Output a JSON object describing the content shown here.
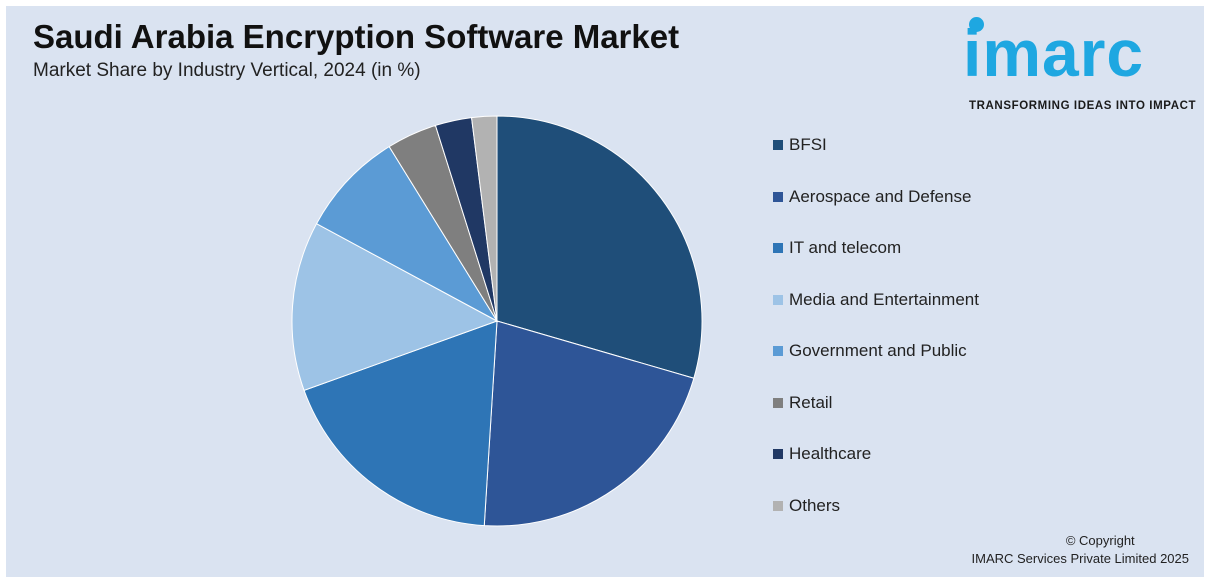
{
  "header": {
    "title": "Saudi Arabia Encryption Software Market",
    "subtitle": "Market Share by Industry Vertical, 2024 (in %)"
  },
  "logo": {
    "wordmark": "imarc",
    "tagline": "TRANSFORMING IDEAS INTO IMPACT",
    "color": "#1ea7e1"
  },
  "chart_data": {
    "type": "pie",
    "categories": [
      "BFSI",
      "Aerospace and Defense",
      "IT and telecom",
      "Media and Entertainment",
      "Government and Public",
      "Retail",
      "Healthcare",
      "Others"
    ],
    "values": [
      29.8,
      21.7,
      18.7,
      13.5,
      8.4,
      4.0,
      2.9,
      2.0
    ],
    "colors": [
      "#1f4e79",
      "#2e5597",
      "#2e75b6",
      "#9dc3e6",
      "#5b9bd5",
      "#7f7f7f",
      "#203864",
      "#b2b2b2"
    ],
    "legend_position": "right"
  },
  "footer": {
    "copyright_line1": "© Copyright",
    "copyright_line2": "IMARC Services Private Limited 2025"
  }
}
